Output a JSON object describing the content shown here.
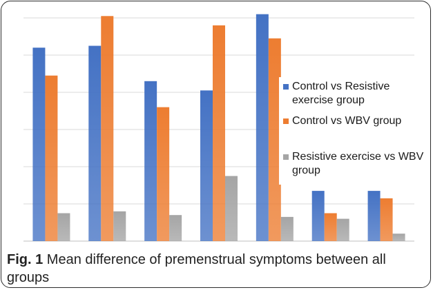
{
  "caption": {
    "label": "Fig. 1",
    "text": "Mean difference of premenstrual symptoms between all groups"
  },
  "chart_data": {
    "type": "bar",
    "title": "",
    "xlabel": "",
    "ylabel": "",
    "categories": [
      "",
      "",
      "",
      "",
      "",
      "",
      ""
    ],
    "ylim": [
      0,
      6
    ],
    "grid": true,
    "legend_position": "right",
    "series": [
      {
        "name": "Control vs Resistive exercise group",
        "color": "#4472C4",
        "values": [
          5.2,
          5.25,
          4.3,
          4.05,
          6.1,
          1.35,
          1.35
        ]
      },
      {
        "name": "Control vs WBV group",
        "color": "#ED7D31",
        "values": [
          4.45,
          6.05,
          3.6,
          5.8,
          5.45,
          0.75,
          1.15
        ]
      },
      {
        "name": "Resistive exercise vs WBV group",
        "color": "#A5A5A5",
        "values": [
          0.75,
          0.8,
          0.7,
          1.75,
          0.65,
          0.6,
          0.2
        ]
      }
    ]
  }
}
